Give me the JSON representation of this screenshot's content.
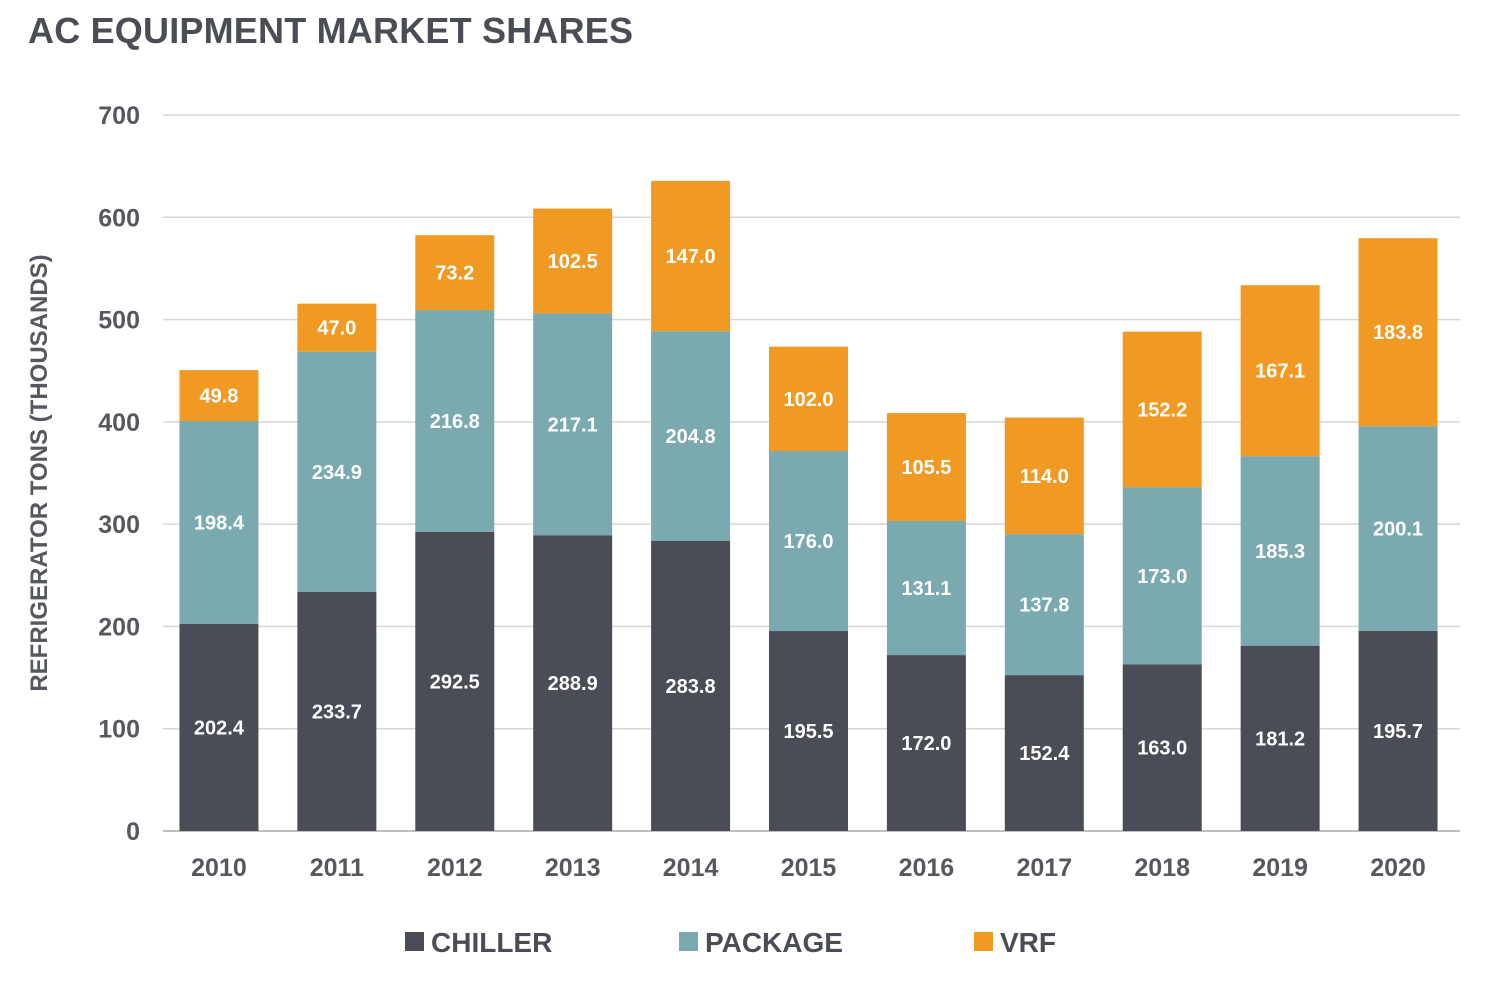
{
  "chart_data": {
    "type": "bar",
    "stacked": true,
    "title": "AC EQUIPMENT MARKET SHARES",
    "xlabel": "",
    "ylabel": "REFRIGERATOR TONS (THOUSANDS)",
    "ylim": [
      0,
      700
    ],
    "yticks": [
      "0",
      "100",
      "200",
      "300",
      "400",
      "500",
      "600",
      "700"
    ],
    "grid": true,
    "legend_position": "bottom",
    "categories": [
      "2010",
      "2011",
      "2012",
      "2013",
      "2014",
      "2015",
      "2016",
      "2017",
      "2018",
      "2019",
      "2020"
    ],
    "series": [
      {
        "name": "CHILLER",
        "color": "#4a4d55",
        "values": [
          202.4,
          233.7,
          292.5,
          288.9,
          283.8,
          195.5,
          172.0,
          152.4,
          163.0,
          181.2,
          195.7
        ],
        "labels": [
          "202.4",
          "233.7",
          "292.5",
          "288.9",
          "283.8",
          "195.5",
          "172.0",
          "152.4",
          "163.0",
          "181.2",
          "195.7"
        ]
      },
      {
        "name": "PACKAGE",
        "color": "#7aa9b0",
        "values": [
          198.4,
          234.9,
          216.8,
          217.1,
          204.8,
          176.0,
          131.1,
          137.8,
          173.0,
          185.3,
          200.1
        ],
        "labels": [
          "198.4",
          "234.9",
          "216.8",
          "217.1",
          "204.8",
          "176.0",
          "131.1",
          "137.8",
          "173.0",
          "185.3",
          "200.1"
        ]
      },
      {
        "name": "VRF",
        "color": "#f09a23",
        "values": [
          49.8,
          47.0,
          73.2,
          102.5,
          147.0,
          102.0,
          105.5,
          114.0,
          152.2,
          167.1,
          183.8
        ],
        "labels": [
          "49.8",
          "47.0",
          "73.2",
          "102.5",
          "147.0",
          "102.0",
          "105.5",
          "114.0",
          "152.2",
          "167.1",
          "183.8"
        ]
      }
    ]
  }
}
